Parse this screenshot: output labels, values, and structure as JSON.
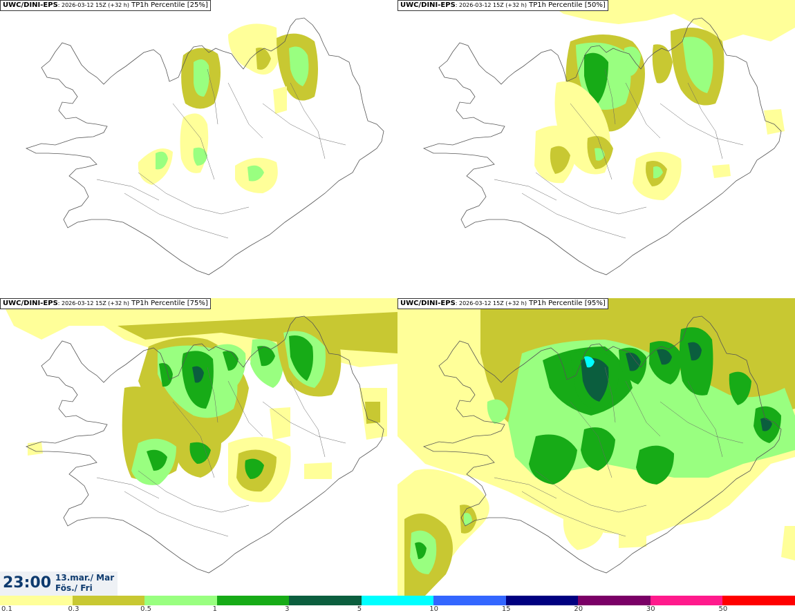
{
  "panels": [
    {
      "model": "UWC/DINI-EPS",
      "run": ": 2026-03-12 15Z (+32 h)",
      "label": " TP1h Percentile [25%]",
      "level": 25
    },
    {
      "model": "UWC/DINI-EPS",
      "run": ": 2026-03-12 15Z (+32 h)",
      "label": " TP1h Percentile [50%]",
      "level": 50
    },
    {
      "model": "UWC/DINI-EPS",
      "run": ": 2026-03-12 15Z (+32 h)",
      "label": " TP1h Percentile [75%]",
      "level": 75
    },
    {
      "model": "UWC/DINI-EPS",
      "run": ": 2026-03-12 15Z (+32 h)",
      "label": " TP1h Percentile [95%]",
      "level": 95
    }
  ],
  "valid": {
    "time": "23:00",
    "date_line1": "13.mar./ Mar",
    "date_line2": "Fös./ Fri"
  },
  "legend": {
    "colors": [
      "#ffff99",
      "#c8c832",
      "#99ff80",
      "#17ab17",
      "#0b5e3e",
      "#00ffff",
      "#3366ff",
      "#000080",
      "#7a0066",
      "#ff1a8c",
      "#ff0000"
    ],
    "ticks": [
      "0.1",
      "0.3",
      "0.5",
      "1",
      "3",
      "5",
      "10",
      "15",
      "20",
      "30",
      "50"
    ]
  }
}
